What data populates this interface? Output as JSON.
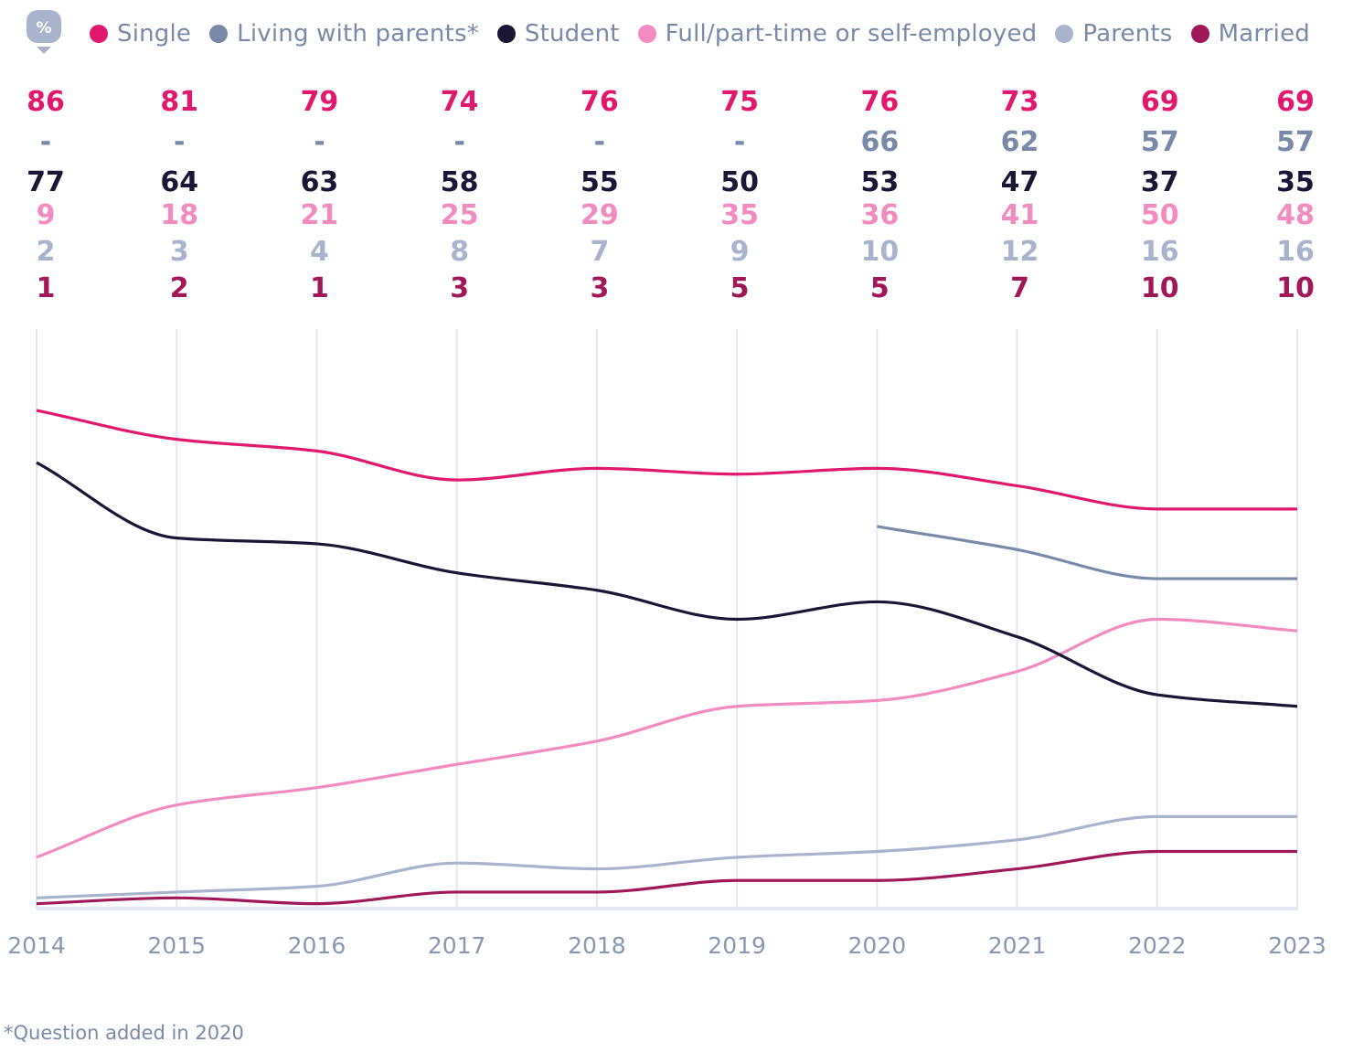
{
  "unit_icon": {
    "name": "percent-icon",
    "label": "%"
  },
  "footnote": "*Question added in 2020",
  "chart_data": {
    "type": "line",
    "title": "",
    "xlabel": "",
    "ylabel": "",
    "x": [
      "2014",
      "2015",
      "2016",
      "2017",
      "2018",
      "2019",
      "2020",
      "2021",
      "2022",
      "2023"
    ],
    "ylim": [
      0,
      100
    ],
    "grid": "vertical",
    "legend_position": "top",
    "missing_label": "-",
    "series": [
      {
        "name": "Single",
        "color": "#e0196f",
        "values": [
          86,
          81,
          79,
          74,
          76,
          75,
          76,
          73,
          69,
          69
        ]
      },
      {
        "name": "Living with parents*",
        "color": "#7a89a8",
        "values": [
          null,
          null,
          null,
          null,
          null,
          null,
          66,
          62,
          57,
          57
        ]
      },
      {
        "name": "Student",
        "color": "#1a1633",
        "values": [
          77,
          64,
          63,
          58,
          55,
          50,
          53,
          47,
          37,
          35
        ]
      },
      {
        "name": "Full/part-time or self-employed",
        "color": "#f28cc0",
        "values": [
          9,
          18,
          21,
          25,
          29,
          35,
          36,
          41,
          50,
          48
        ]
      },
      {
        "name": "Parents",
        "color": "#a9b4cc",
        "values": [
          2,
          3,
          4,
          8,
          7,
          9,
          10,
          12,
          16,
          16
        ]
      },
      {
        "name": "Married",
        "color": "#a0185a",
        "values": [
          1,
          2,
          1,
          3,
          3,
          5,
          5,
          7,
          10,
          10
        ]
      }
    ]
  }
}
